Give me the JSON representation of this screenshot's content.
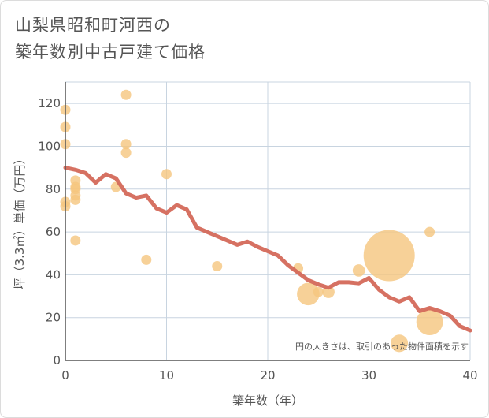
{
  "title": {
    "line1": "山梨県昭和町河西の",
    "line2": "築年数別中古戸建て価格"
  },
  "chart_data": {
    "type": "scatter",
    "xlabel": "築年数（年）",
    "ylabel": "坪（3.3㎡）単価（万円）",
    "xlim": [
      0,
      40
    ],
    "ylim": [
      0,
      130
    ],
    "xticks": [
      0,
      10,
      20,
      30,
      40
    ],
    "yticks": [
      0,
      20,
      40,
      60,
      80,
      100,
      120
    ],
    "grid": true,
    "note": "円の大きさは、取引のあった物件面積を示す",
    "colors": {
      "points": "#f5c57e",
      "line": "#d4695a",
      "grid": "#c8d4e0",
      "axis": "#555555"
    },
    "points": [
      {
        "x": 0,
        "y": 117,
        "size": 1
      },
      {
        "x": 0,
        "y": 109,
        "size": 1
      },
      {
        "x": 0,
        "y": 101,
        "size": 1
      },
      {
        "x": 0,
        "y": 74,
        "size": 1
      },
      {
        "x": 0,
        "y": 72,
        "size": 1
      },
      {
        "x": 1,
        "y": 84,
        "size": 1
      },
      {
        "x": 1,
        "y": 81,
        "size": 1
      },
      {
        "x": 1,
        "y": 80,
        "size": 1
      },
      {
        "x": 1,
        "y": 77,
        "size": 1
      },
      {
        "x": 1,
        "y": 75,
        "size": 1
      },
      {
        "x": 1,
        "y": 56,
        "size": 1
      },
      {
        "x": 5,
        "y": 81,
        "size": 1
      },
      {
        "x": 6,
        "y": 124,
        "size": 1
      },
      {
        "x": 6,
        "y": 101,
        "size": 1
      },
      {
        "x": 6,
        "y": 97,
        "size": 1
      },
      {
        "x": 8,
        "y": 47,
        "size": 1
      },
      {
        "x": 10,
        "y": 87,
        "size": 1
      },
      {
        "x": 15,
        "y": 44,
        "size": 1
      },
      {
        "x": 23,
        "y": 43,
        "size": 1
      },
      {
        "x": 24,
        "y": 31,
        "size": 2.2
      },
      {
        "x": 25,
        "y": 32,
        "size": 1
      },
      {
        "x": 26,
        "y": 32,
        "size": 1.2
      },
      {
        "x": 29,
        "y": 42,
        "size": 1.2
      },
      {
        "x": 32,
        "y": 49,
        "size": 5
      },
      {
        "x": 33,
        "y": 8,
        "size": 1.7
      },
      {
        "x": 36,
        "y": 18,
        "size": 2.6
      },
      {
        "x": 36,
        "y": 60,
        "size": 1
      }
    ],
    "trend": {
      "x": [
        0,
        1,
        2,
        3,
        4,
        5,
        6,
        7,
        8,
        9,
        10,
        11,
        12,
        13,
        14,
        15,
        16,
        17,
        18,
        19,
        20,
        21,
        22,
        23,
        24,
        25,
        26,
        27,
        28,
        29,
        30,
        31,
        32,
        33,
        34,
        35,
        36,
        37,
        38,
        39,
        40
      ],
      "y": [
        90,
        89,
        87.5,
        83,
        87,
        85,
        78,
        76,
        77,
        71,
        69,
        72.5,
        70.5,
        62,
        60,
        58,
        56,
        54,
        55.5,
        53,
        51,
        49,
        44.5,
        41,
        37.5,
        35.5,
        34,
        36.5,
        36.5,
        36,
        38.5,
        33,
        29.5,
        27.5,
        29.5,
        23,
        24.5,
        23,
        21,
        16,
        14
      ]
    }
  }
}
